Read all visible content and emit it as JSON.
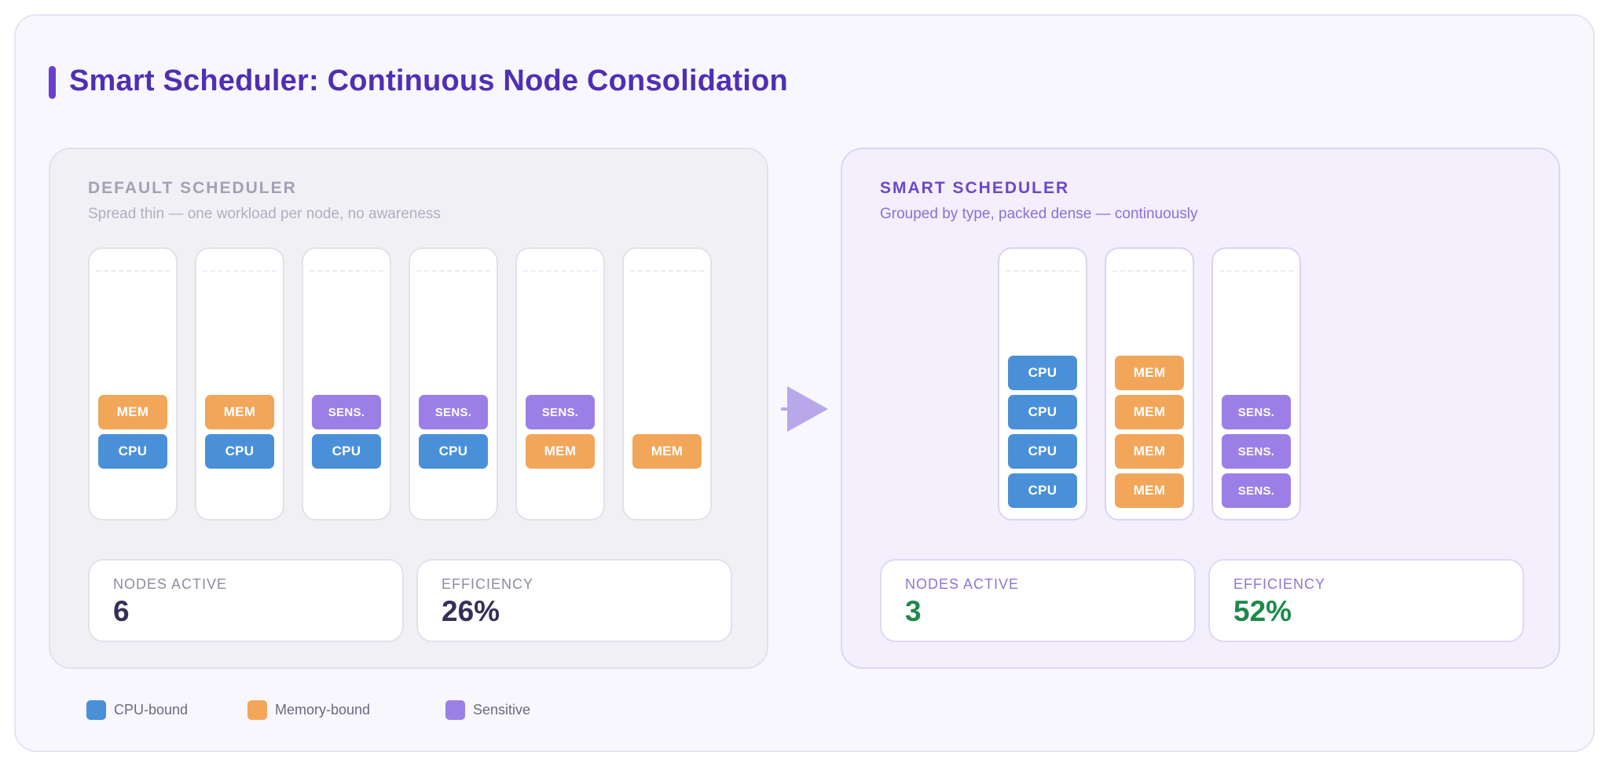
{
  "title": "Smart Scheduler: Continuous Node Consolidation",
  "colors": {
    "accent": "#4f2fb4",
    "cpu": "#4a90d9",
    "memory": "#f2a65a",
    "sensitive": "#9b7fe6",
    "good": "#1d8a4a"
  },
  "default_panel": {
    "heading": "DEFAULT SCHEDULER",
    "subtitle": "Spread thin — one workload per node, no awareness",
    "nodes": [
      {
        "pods": [
          {
            "type": "cpu",
            "label": "CPU"
          },
          {
            "type": "mem",
            "label": "MEM"
          }
        ]
      },
      {
        "pods": [
          {
            "type": "cpu",
            "label": "CPU"
          },
          {
            "type": "mem",
            "label": "MEM"
          }
        ]
      },
      {
        "pods": [
          {
            "type": "cpu",
            "label": "CPU"
          },
          {
            "type": "sens",
            "label": "SENS."
          }
        ]
      },
      {
        "pods": [
          {
            "type": "cpu",
            "label": "CPU"
          },
          {
            "type": "sens",
            "label": "SENS."
          }
        ]
      },
      {
        "pods": [
          {
            "type": "mem",
            "label": "MEM"
          },
          {
            "type": "sens",
            "label": "SENS."
          }
        ]
      },
      {
        "pods": [
          {
            "type": "mem",
            "label": "MEM"
          }
        ]
      }
    ],
    "stats": [
      {
        "label": "NODES ACTIVE",
        "value": "6"
      },
      {
        "label": "EFFICIENCY",
        "value": "26%"
      }
    ]
  },
  "arrow_icon": "right-arrow-icon",
  "smart_panel": {
    "heading": "SMART SCHEDULER",
    "subtitle": "Grouped by type, packed dense — continuously",
    "nodes": [
      {
        "pods": [
          {
            "type": "cpu",
            "label": "CPU"
          },
          {
            "type": "cpu",
            "label": "CPU"
          },
          {
            "type": "cpu",
            "label": "CPU"
          },
          {
            "type": "cpu",
            "label": "CPU"
          }
        ]
      },
      {
        "pods": [
          {
            "type": "mem",
            "label": "MEM"
          },
          {
            "type": "mem",
            "label": "MEM"
          },
          {
            "type": "mem",
            "label": "MEM"
          },
          {
            "type": "mem",
            "label": "MEM"
          }
        ]
      },
      {
        "pods": [
          {
            "type": "sens",
            "label": "SENS."
          },
          {
            "type": "sens",
            "label": "SENS."
          },
          {
            "type": "sens",
            "label": "SENS."
          }
        ]
      }
    ],
    "stats": [
      {
        "label": "NODES ACTIVE",
        "value": "3"
      },
      {
        "label": "EFFICIENCY",
        "value": "52%"
      }
    ]
  },
  "legend": [
    {
      "type": "cpu",
      "label": "CPU-bound"
    },
    {
      "type": "mem",
      "label": "Memory-bound"
    },
    {
      "type": "sens",
      "label": "Sensitive"
    }
  ]
}
